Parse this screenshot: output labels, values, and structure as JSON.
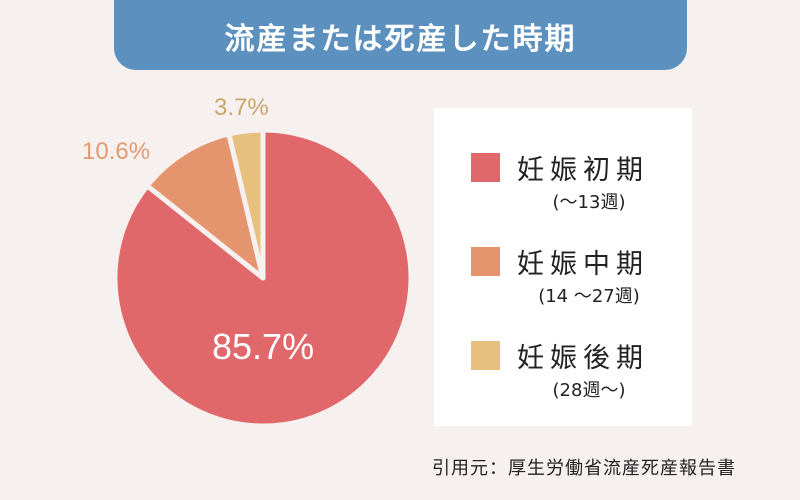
{
  "title": "流産または死産した時期",
  "chart_data": {
    "type": "pie",
    "title": "流産または死産した時期",
    "categories": [
      "妊娠初期",
      "妊娠中期",
      "妊娠後期"
    ],
    "values": [
      85.7,
      10.6,
      3.7
    ],
    "units": "%",
    "data_labels": [
      "85.7%",
      "10.6%",
      "3.7%"
    ],
    "colors": [
      "#e0686b",
      "#e5956e",
      "#e8c07e"
    ],
    "legend_position": "right",
    "legend": [
      {
        "name": "妊娠初期",
        "range": "(〜13週)",
        "color": "#e0686b"
      },
      {
        "name": "妊娠中期",
        "range": "(14 〜27週)",
        "color": "#e5956e"
      },
      {
        "name": "妊娠後期",
        "range": "(28週〜)",
        "color": "#e8c07e"
      }
    ]
  },
  "labels": {
    "early": "85.7%",
    "mid": "10.6%",
    "late": "3.7%"
  },
  "source": "引用元：厚生労働省流産死産報告書",
  "colors": {
    "background": "#f6f1ee",
    "title_bar": "#5b90bf",
    "legend_bg": "#ffffff"
  }
}
